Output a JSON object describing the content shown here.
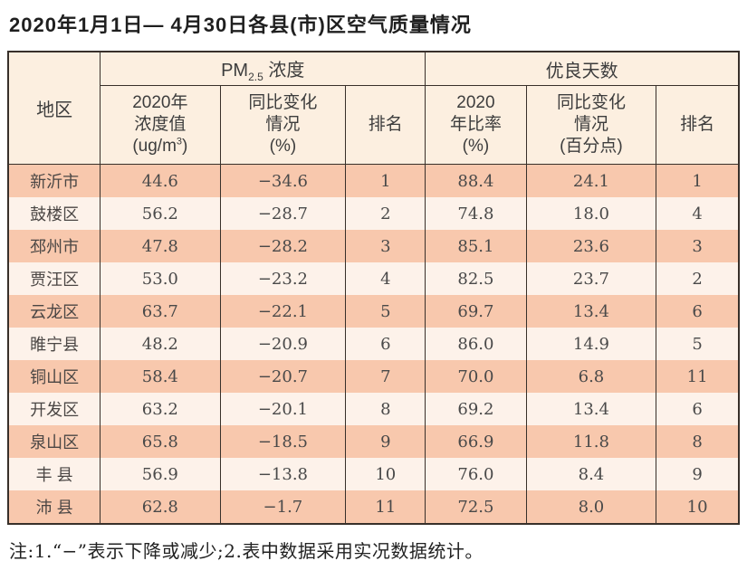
{
  "title": "2020年1月1日— 4月30日各县(市)区空气质量情况",
  "colors": {
    "row_salmon": "#f8c8ad",
    "row_light": "#fdf2ea",
    "header_bg": "#fcefe0",
    "border": "#38302a",
    "body_text": "#494949"
  },
  "table": {
    "headers": {
      "region": "地区",
      "pm_group_prefix": "PM",
      "pm_group_sub": "2.5",
      "pm_group_suffix": " 浓度",
      "good_group": "优良天数",
      "pm_value_l1": "2020年",
      "pm_value_l2": "浓度值",
      "pm_value_l3a": "(ug/m",
      "pm_value_l3sup": "3",
      "pm_value_l3b": ")",
      "pm_change_l1": "同比变化",
      "pm_change_l2": "情况",
      "pm_change_l3": "(%)",
      "pm_rank": "排名",
      "good_ratio_l1": "2020",
      "good_ratio_l2": "年比率",
      "good_ratio_l3": "(%)",
      "good_change_l1": "同比变化",
      "good_change_l2": "情况",
      "good_change_l3": "(百分点)",
      "good_rank": "排名"
    },
    "rows": [
      {
        "region": "新沂市",
        "pm_value": "44.6",
        "pm_change": "−34.6",
        "pm_rank": "1",
        "good_ratio": "88.4",
        "good_change": "24.1",
        "good_rank": "1"
      },
      {
        "region": "鼓楼区",
        "pm_value": "56.2",
        "pm_change": "−28.7",
        "pm_rank": "2",
        "good_ratio": "74.8",
        "good_change": "18.0",
        "good_rank": "4"
      },
      {
        "region": "邳州市",
        "pm_value": "47.8",
        "pm_change": "−28.2",
        "pm_rank": "3",
        "good_ratio": "85.1",
        "good_change": "23.6",
        "good_rank": "3"
      },
      {
        "region": "贾汪区",
        "pm_value": "53.0",
        "pm_change": "−23.2",
        "pm_rank": "4",
        "good_ratio": "82.5",
        "good_change": "23.7",
        "good_rank": "2"
      },
      {
        "region": "云龙区",
        "pm_value": "63.7",
        "pm_change": "−22.1",
        "pm_rank": "5",
        "good_ratio": "69.7",
        "good_change": "13.4",
        "good_rank": "6"
      },
      {
        "region": "睢宁县",
        "pm_value": "48.2",
        "pm_change": "−20.9",
        "pm_rank": "6",
        "good_ratio": "86.0",
        "good_change": "14.9",
        "good_rank": "5"
      },
      {
        "region": "铜山区",
        "pm_value": "58.4",
        "pm_change": "−20.7",
        "pm_rank": "7",
        "good_ratio": "70.0",
        "good_change": "6.8",
        "good_rank": "11"
      },
      {
        "region": "开发区",
        "pm_value": "63.2",
        "pm_change": "−20.1",
        "pm_rank": "8",
        "good_ratio": "69.2",
        "good_change": "13.4",
        "good_rank": "6"
      },
      {
        "region": "泉山区",
        "pm_value": "65.8",
        "pm_change": "−18.5",
        "pm_rank": "9",
        "good_ratio": "66.9",
        "good_change": "11.8",
        "good_rank": "8"
      },
      {
        "region": "丰 县",
        "pm_value": "56.9",
        "pm_change": "−13.8",
        "pm_rank": "10",
        "good_ratio": "76.0",
        "good_change": "8.4",
        "good_rank": "9"
      },
      {
        "region": "沛 县",
        "pm_value": "62.8",
        "pm_change": "−1.7",
        "pm_rank": "11",
        "good_ratio": "72.5",
        "good_change": "8.0",
        "good_rank": "10"
      }
    ]
  },
  "note": "注:1.“−”表示下降或减少;2.表中数据采用实况数据统计。"
}
